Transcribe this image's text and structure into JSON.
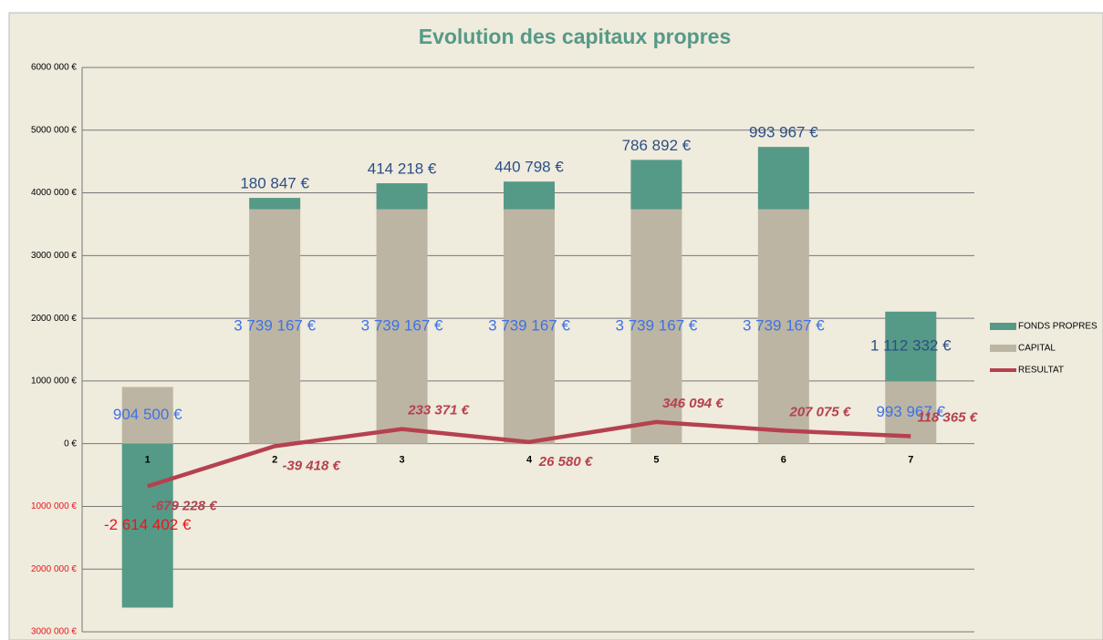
{
  "chart_data": {
    "type": "bar",
    "stacked": true,
    "title": "Evolution des capitaux propres",
    "categories": [
      "1",
      "2",
      "3",
      "4",
      "5",
      "6",
      "7"
    ],
    "series": [
      {
        "name": "FONDS PROPRES",
        "type": "bar",
        "color": "#559a87",
        "label_color": "#2b4f86",
        "negative_label_color": "#e8161b",
        "values": [
          -2614402,
          180847,
          414218,
          440798,
          786892,
          993967,
          1112332
        ],
        "value_labels": [
          "-2 614 402 €",
          "180 847 €",
          "414 218 €",
          "440 798 €",
          "786 892 €",
          "993 967 €",
          "1 112 332 €"
        ]
      },
      {
        "name": "CAPITAL",
        "type": "bar",
        "color": "#bdb5a3",
        "label_color": "#3d72e6",
        "values": [
          904500,
          3739167,
          3739167,
          3739167,
          3739167,
          3739167,
          993967
        ],
        "value_labels": [
          "904 500 €",
          "3 739 167 €",
          "3 739 167 €",
          "3 739 167 €",
          "3 739 167 €",
          "3 739 167 €",
          "993 967 €"
        ]
      },
      {
        "name": "RESULTAT",
        "type": "line",
        "color": "#b5414f",
        "label_color": "#b5414f",
        "values": [
          -679228,
          -39418,
          233371,
          26580,
          346094,
          207075,
          118365
        ],
        "value_labels": [
          "-679 228 €",
          "-39 418 €",
          "233 371 €",
          "26 580 €",
          "346 094 €",
          "207 075 €",
          "118 365 €"
        ]
      }
    ],
    "ylim": [
      -3000000,
      6000000
    ],
    "yticks": [
      {
        "value": 6000000,
        "label": "6000 000 €"
      },
      {
        "value": 5000000,
        "label": "5000 000 €"
      },
      {
        "value": 4000000,
        "label": "4000 000 €"
      },
      {
        "value": 3000000,
        "label": "3000 000 €"
      },
      {
        "value": 2000000,
        "label": "2000 000 €"
      },
      {
        "value": 1000000,
        "label": "1000 000 €"
      },
      {
        "value": 0,
        "label": "0 €"
      },
      {
        "value": -1000000,
        "label": "1000 000 €"
      },
      {
        "value": -2000000,
        "label": "2000 000 €"
      },
      {
        "value": -3000000,
        "label": "3000 000 €"
      }
    ],
    "negative_tick_color": "#e8161b",
    "grid": true,
    "legend": "right"
  }
}
